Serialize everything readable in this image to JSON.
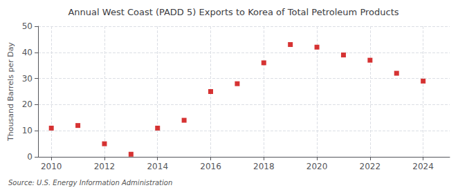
{
  "chart_data": {
    "type": "scatter",
    "title": "Annual West Coast (PADD 5) Exports to Korea of Total Petroleum Products",
    "ylabel": "Thousand Barrels per Day",
    "annotations": [
      "Source: U.S. Energy Information Administration"
    ],
    "x": [
      2010,
      2011,
      2012,
      2013,
      2014,
      2015,
      2016,
      2017,
      2018,
      2019,
      2020,
      2021,
      2022,
      2023,
      2024
    ],
    "values": [
      11,
      12,
      5,
      1,
      11,
      14,
      25,
      28,
      36,
      43,
      42,
      39,
      37,
      32,
      29
    ],
    "color": "#cc0000",
    "marker": "square",
    "xlim": [
      2009.5,
      2025.0
    ],
    "ylim": [
      0,
      50
    ],
    "xticks": [
      2010,
      2012,
      2014,
      2016,
      2018,
      2020,
      2022,
      2024
    ],
    "yticks": [
      0,
      10,
      20,
      30,
      40,
      50
    ],
    "grid": true
  }
}
